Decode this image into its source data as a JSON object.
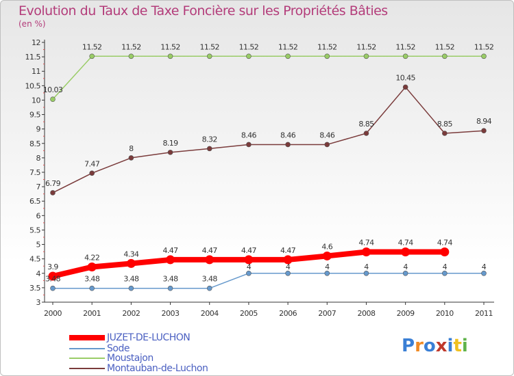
{
  "title": "Evolution du Taux de Taxe Foncière sur les Propriétés Bâties",
  "subtitle": "(en %)",
  "chart_data": {
    "type": "line",
    "x": [
      "2000",
      "2001",
      "2002",
      "2003",
      "2004",
      "2005",
      "2006",
      "2007",
      "2008",
      "2009",
      "2010",
      "2011"
    ],
    "ylim": [
      3,
      12
    ],
    "yticks": [
      "3",
      "3.5",
      "4",
      "4.5",
      "5",
      "5.5",
      "6",
      "6.5",
      "7",
      "7.5",
      "8",
      "8.5",
      "9",
      "9.5",
      "10",
      "10.5",
      "11",
      "11.5",
      "12"
    ],
    "grid": false,
    "legend_position": "bottom-left",
    "series": [
      {
        "name": "JUZET-DE-LUCHON",
        "color": "#ff0000",
        "values": [
          3.9,
          4.22,
          4.34,
          4.47,
          4.47,
          4.47,
          4.47,
          4.6,
          4.74,
          4.74,
          4.74,
          null
        ],
        "labels": [
          "3.9",
          "4.22",
          "4.34",
          "4.47",
          "4.47",
          "4.47",
          "4.47",
          "4.6",
          "4.74",
          "4.74",
          "4.74",
          ""
        ]
      },
      {
        "name": "Sode",
        "color": "#6699cc",
        "values": [
          3.48,
          3.48,
          3.48,
          3.48,
          3.48,
          4,
          4,
          4,
          4,
          4,
          4,
          4
        ],
        "labels": [
          "3.48",
          "3.48",
          "3.48",
          "3.48",
          "3.48",
          "4",
          "4",
          "4",
          "4",
          "4",
          "4",
          "4"
        ]
      },
      {
        "name": "Moustajon",
        "color": "#99cc66",
        "values": [
          10.03,
          11.52,
          11.52,
          11.52,
          11.52,
          11.52,
          11.52,
          11.52,
          11.52,
          11.52,
          11.52,
          11.52
        ],
        "labels": [
          "10.03",
          "11.52",
          "11.52",
          "11.52",
          "11.52",
          "11.52",
          "11.52",
          "11.52",
          "11.52",
          "11.52",
          "11.52",
          "11.52"
        ]
      },
      {
        "name": "Montauban-de-Luchon",
        "color": "#7a3b3b",
        "values": [
          6.79,
          7.47,
          8,
          8.19,
          8.32,
          8.46,
          8.46,
          8.46,
          8.85,
          10.45,
          8.85,
          8.94
        ],
        "labels": [
          "6.79",
          "7.47",
          "8",
          "8.19",
          "8.32",
          "8.46",
          "8.46",
          "8.46",
          "8.85",
          "10.45",
          "8.85",
          "8.94"
        ]
      }
    ]
  },
  "logo": {
    "letters": [
      "P",
      "r",
      "o",
      "x",
      "i",
      "t",
      "i"
    ],
    "colors": [
      "#3a7fd5",
      "#f08a24",
      "#3a7fd5",
      "#c0392b",
      "#3a7fd5",
      "#f0c020",
      "#5fb34a"
    ]
  }
}
